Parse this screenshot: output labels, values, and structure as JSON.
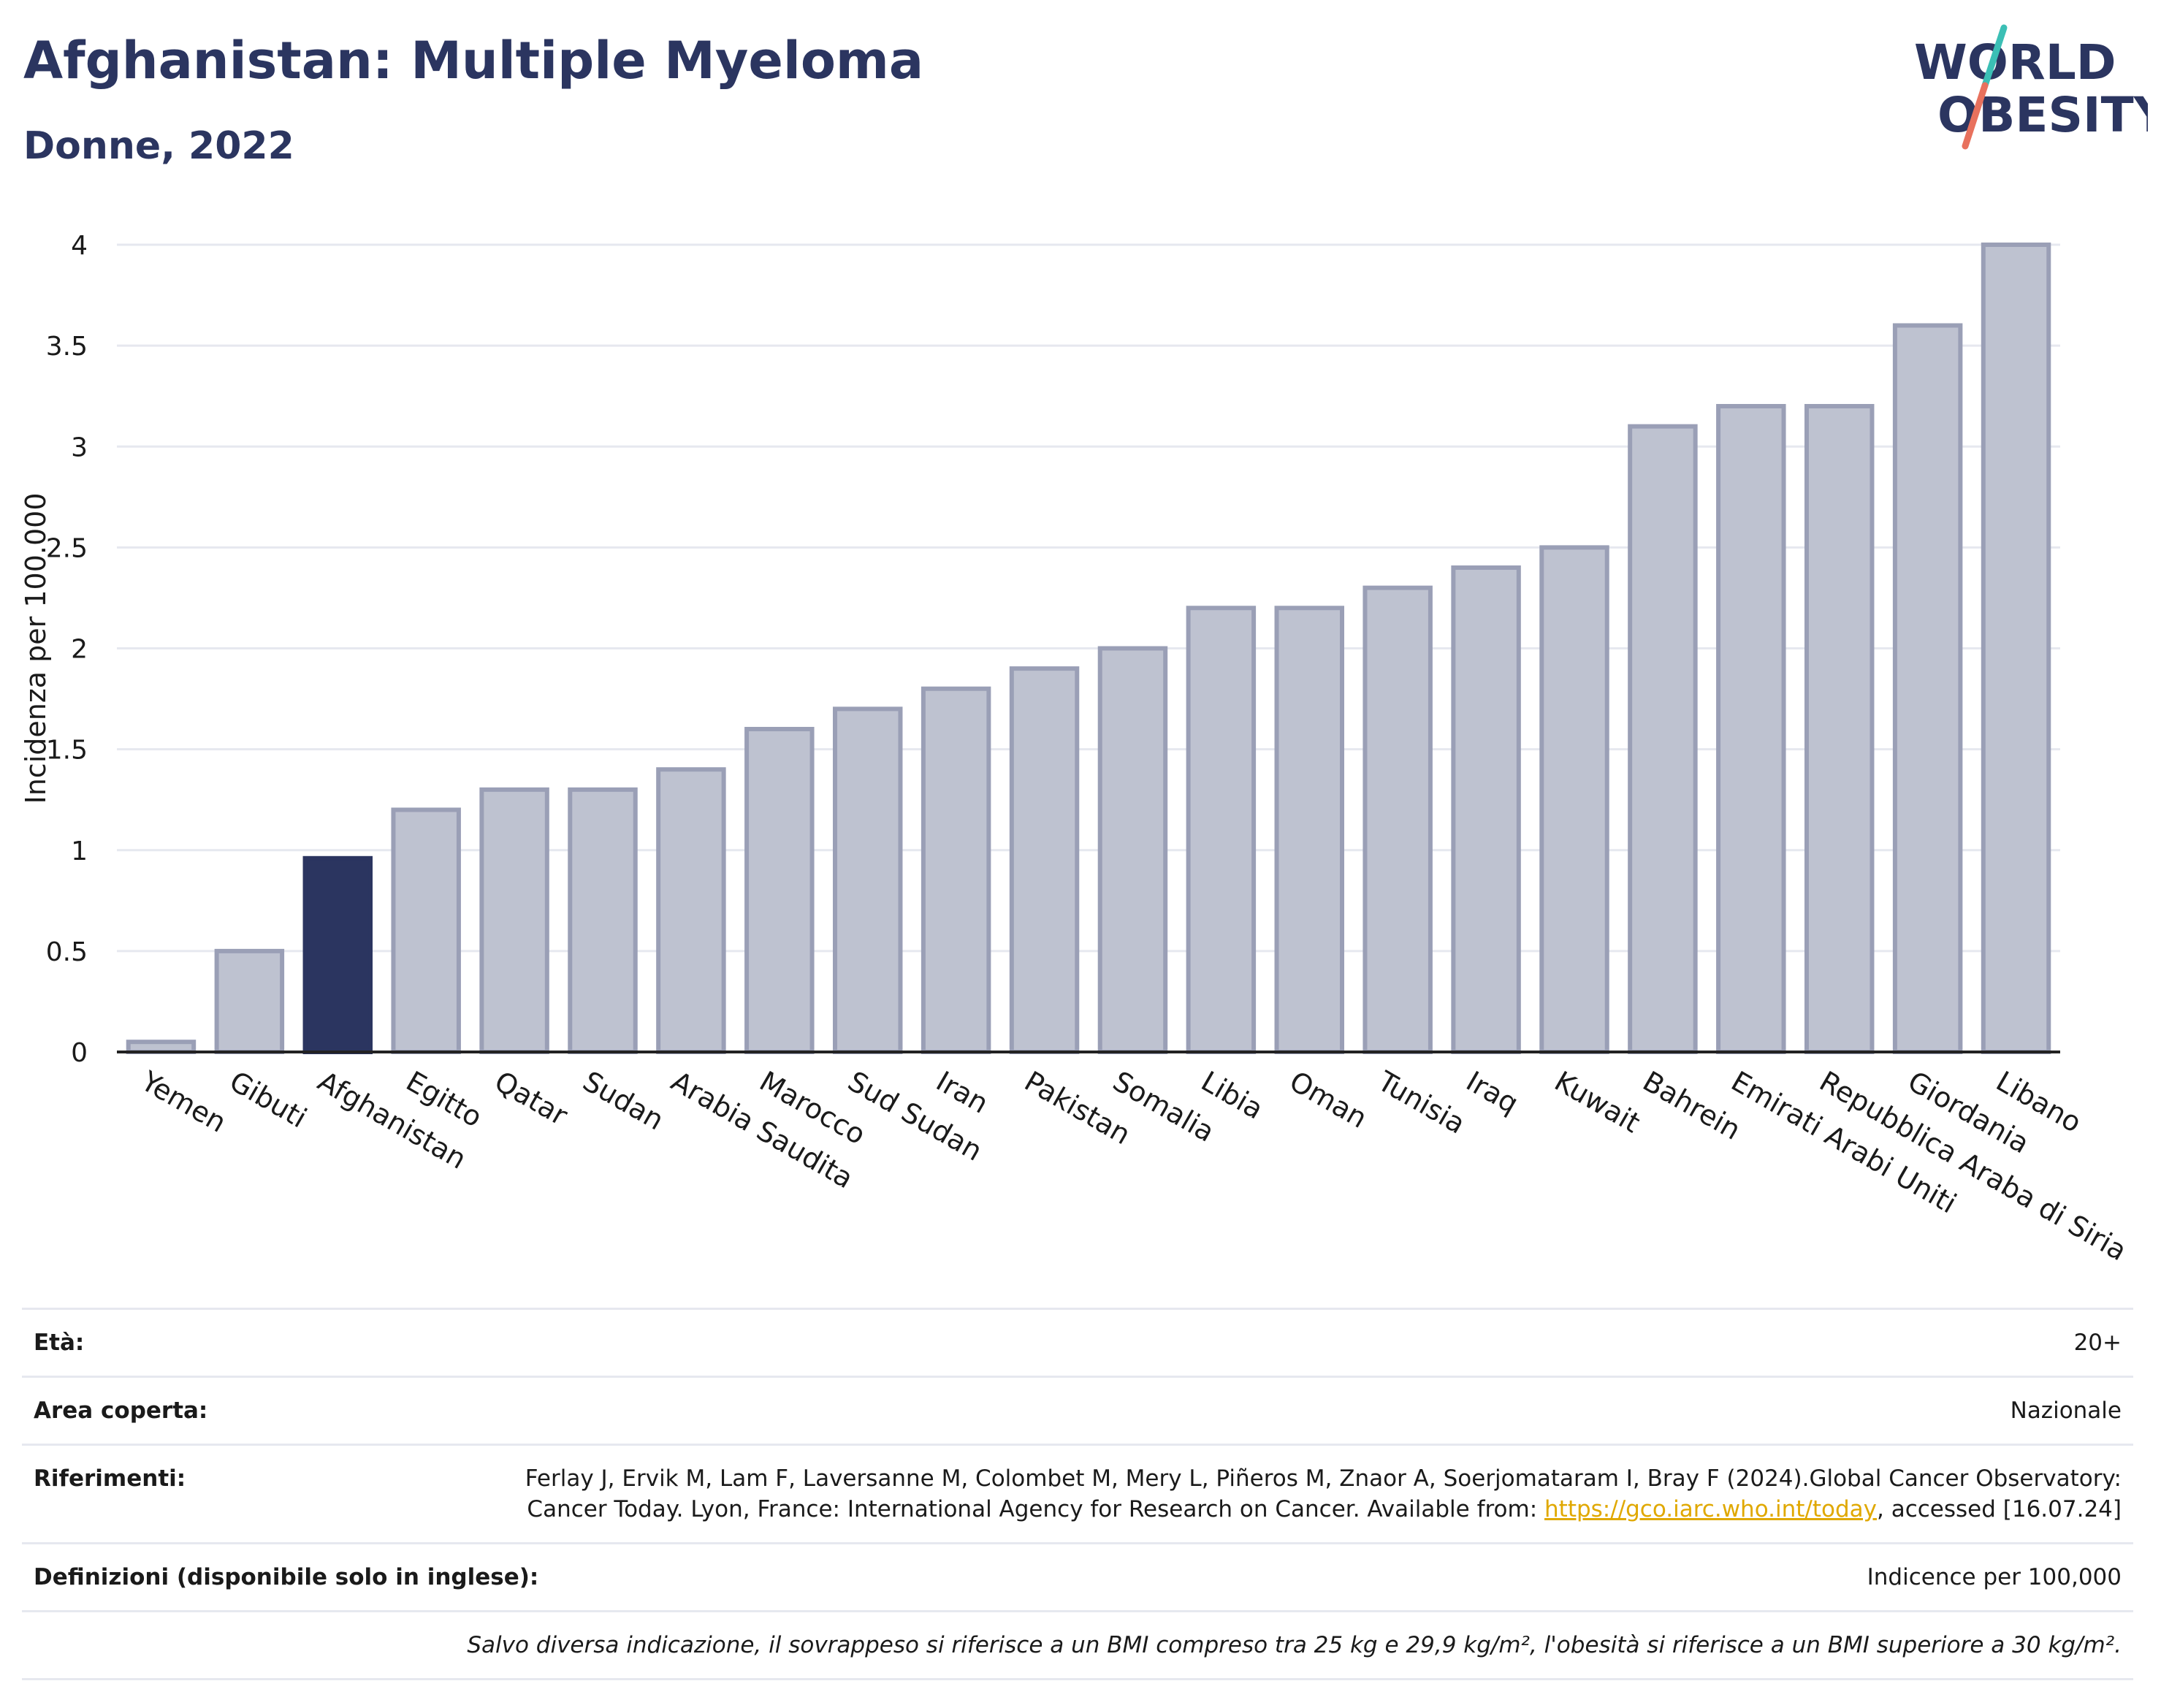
{
  "header": {
    "title": "Afghanistan: Multiple Myeloma",
    "subtitle": "Donne, 2022",
    "logo_line1": "WORLD",
    "logo_line2": "OBESITY"
  },
  "colors": {
    "highlight_bar": "#2b3560",
    "bar_fill": "#bec2d0",
    "bar_stroke": "#9a9fb6",
    "axis": "#222222",
    "grid": "#e6e8ef",
    "logo_text": "#2b3560",
    "logo_slash_teal": "#3bbfb5",
    "logo_slash_red": "#e8715d"
  },
  "chart_data": {
    "type": "bar",
    "ylabel": "Incidenza per 100.000",
    "ylim": [
      0,
      4
    ],
    "yticks": [
      {
        "value": 0,
        "label": "0"
      },
      {
        "value": 0.5,
        "label": "0.5"
      },
      {
        "value": 1,
        "label": "1"
      },
      {
        "value": 1.5,
        "label": "1.5"
      },
      {
        "value": 2,
        "label": "2"
      },
      {
        "value": 2.5,
        "label": "2.5"
      },
      {
        "value": 3,
        "label": "3"
      },
      {
        "value": 3.5,
        "label": "3.5"
      },
      {
        "value": 4,
        "label": "4"
      }
    ],
    "grid": true,
    "highlight": "Afghanistan",
    "categories": [
      "Yemen",
      "Gibuti",
      "Afghanistan",
      "Egitto",
      "Qatar",
      "Sudan",
      "Arabia Saudita",
      "Marocco",
      "Sud Sudan",
      "Iran",
      "Pakistan",
      "Somalia",
      "Libia",
      "Oman",
      "Tunisia",
      "Iraq",
      "Kuwait",
      "Bahrein",
      "Emirati Arabi Uniti",
      "Repubblica Araba di Siria",
      "Giordania",
      "Libano"
    ],
    "values": [
      0.05,
      0.5,
      0.96,
      1.2,
      1.3,
      1.3,
      1.4,
      1.6,
      1.7,
      1.8,
      1.9,
      2.0,
      2.2,
      2.2,
      2.3,
      2.4,
      2.5,
      3.1,
      3.2,
      3.2,
      3.6,
      4.0
    ]
  },
  "info": {
    "age_label": "Età:",
    "age_value": "20+",
    "area_label": "Area coperta:",
    "area_value": "Nazionale",
    "refs_label": "Riferimenti:",
    "refs_text_1": "Ferlay J, Ervik M, Lam F, Laversanne M, Colombet M, Mery L, Piñeros M, Znaor A, Soerjomataram I, Bray F (2024).Global Cancer Observatory: Cancer Today. Lyon, France: International Agency for Research on Cancer. Available from: ",
    "refs_link": "https://gco.iarc.who.int/today",
    "refs_text_2": ", accessed [16.07.24]",
    "defs_label": "Definizioni (disponibile solo in inglese):",
    "defs_value": "Indicence per 100,000",
    "note": "Salvo diversa indicazione, il sovrappeso si riferisce a un BMI compreso tra 25 kg e 29,9 kg/m², l'obesità si riferisce a un BMI superiore a 30 kg/m²."
  }
}
